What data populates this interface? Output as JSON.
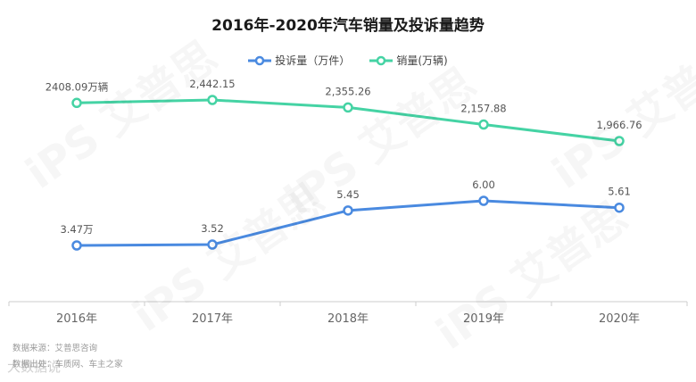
{
  "title": "2016年-2020年汽车销量及投诉量趋势",
  "source_lines": [
    "数据来源：艾普思咨询",
    "数据出处：车质网、车主之家"
  ],
  "site_watermark": "大数据说",
  "watermark_text": "iPS 艾普思",
  "chart_data": {
    "type": "line",
    "categories": [
      "2016年",
      "2017年",
      "2018年",
      "2019年",
      "2020年"
    ],
    "series": [
      {
        "name": "投诉量（万件）",
        "color": "#4a8ae0",
        "values": [
          3.47,
          3.52,
          5.45,
          6.0,
          5.61
        ],
        "labels": [
          "3.47万",
          "3.52",
          "5.45",
          "6.00",
          "5.61"
        ]
      },
      {
        "name": "销量(万辆)",
        "color": "#45d3a4",
        "values": [
          2408.09,
          2442.15,
          2355.26,
          2157.88,
          1966.76
        ],
        "labels": [
          "2408.09万辆",
          "2,442.15",
          "2,355.26",
          "2,157.88",
          "1,966.76"
        ]
      }
    ],
    "grid": false,
    "legend_position": "top-center"
  }
}
